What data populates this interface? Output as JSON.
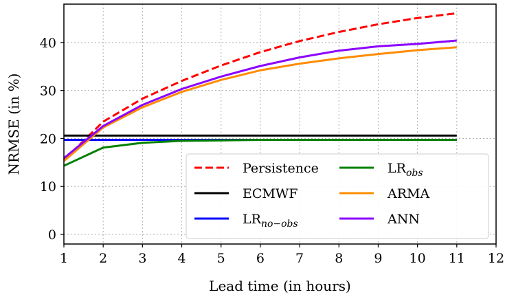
{
  "chart_data": {
    "type": "line",
    "xlabel": "Lead time (in hours)",
    "ylabel": "NRMSE (in %)",
    "xlim": [
      1,
      12
    ],
    "ylim": [
      -2,
      48
    ],
    "xticks": [
      1,
      2,
      3,
      4,
      5,
      6,
      7,
      8,
      9,
      10,
      11,
      12
    ],
    "yticks": [
      0,
      10,
      20,
      30,
      40
    ],
    "grid": true,
    "legend_position": "bottom-right",
    "legend_columns": 2,
    "x": [
      1,
      2,
      3,
      4,
      5,
      6,
      7,
      8,
      9,
      10,
      11
    ],
    "series": [
      {
        "name": "Persistence",
        "color": "#ff0000",
        "dash": "dashed",
        "values": [
          15.5,
          23.5,
          28.3,
          32.0,
          35.2,
          38.0,
          40.3,
          42.2,
          43.8,
          45.1,
          46.1
        ]
      },
      {
        "name": "ECMWF",
        "color": "#000000",
        "dash": "solid",
        "values": [
          20.6,
          20.6,
          20.6,
          20.6,
          20.6,
          20.6,
          20.6,
          20.6,
          20.6,
          20.6,
          20.6
        ]
      },
      {
        "name": "LR",
        "subscript": "no−obs",
        "color": "#0000ff",
        "dash": "solid",
        "values": [
          19.7,
          19.7,
          19.7,
          19.7,
          19.7,
          19.7,
          19.7,
          19.7,
          19.7,
          19.7,
          19.7
        ]
      },
      {
        "name": "LR",
        "subscript": "obs",
        "color": "#008000",
        "dash": "solid",
        "values": [
          14.3,
          18.1,
          19.1,
          19.5,
          19.6,
          19.7,
          19.7,
          19.7,
          19.7,
          19.7,
          19.7
        ]
      },
      {
        "name": "ARMA",
        "color": "#ff8c00",
        "dash": "solid",
        "values": [
          15.3,
          22.3,
          26.5,
          29.7,
          32.2,
          34.2,
          35.6,
          36.7,
          37.6,
          38.4,
          39.0
        ]
      },
      {
        "name": "ANN",
        "color": "#8b00ff",
        "dash": "solid",
        "values": [
          15.9,
          22.6,
          27.0,
          30.3,
          32.9,
          35.1,
          36.9,
          38.3,
          39.2,
          39.7,
          40.4
        ]
      }
    ]
  }
}
